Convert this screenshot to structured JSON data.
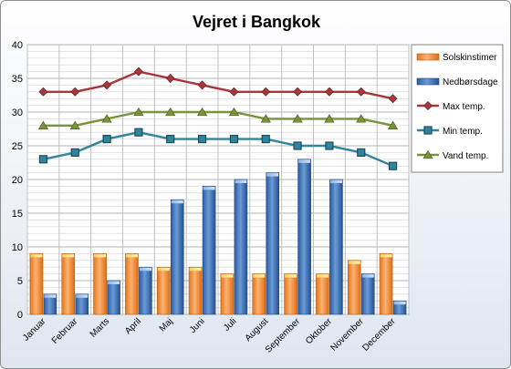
{
  "chart_data": {
    "type": "bar",
    "title": "Vejret i Bangkok",
    "categories": [
      "Januar",
      "Februar",
      "Marts",
      "April",
      "Maj",
      "Juni",
      "Juli",
      "August",
      "September",
      "Oktober",
      "November",
      "December"
    ],
    "ylim": [
      0,
      40
    ],
    "yticks": [
      0,
      5,
      10,
      15,
      20,
      25,
      30,
      35,
      40
    ],
    "grid": true,
    "legend_position": "right",
    "series": [
      {
        "name": "Solskinstimer",
        "kind": "bar",
        "color": "#f79646",
        "values": [
          9,
          9,
          9,
          9,
          7,
          7,
          6,
          6,
          6,
          6,
          8,
          9
        ]
      },
      {
        "name": "Nedbørsdage",
        "kind": "bar",
        "color": "#4f81bd",
        "values": [
          3,
          3,
          5,
          7,
          17,
          19,
          20,
          21,
          23,
          20,
          6,
          2
        ]
      },
      {
        "name": "Max temp.",
        "kind": "line",
        "marker": "diamond",
        "color": "#a5373d",
        "values": [
          33,
          33,
          34,
          36,
          35,
          34,
          33,
          33,
          33,
          33,
          33,
          32
        ]
      },
      {
        "name": "Min temp.",
        "kind": "line",
        "marker": "square",
        "color": "#31849b",
        "values": [
          23,
          24,
          26,
          27,
          26,
          26,
          26,
          26,
          25,
          25,
          24,
          22
        ]
      },
      {
        "name": "Vand temp.",
        "kind": "line",
        "marker": "triangle",
        "color": "#77933c",
        "values": [
          28,
          28,
          29,
          30,
          30,
          30,
          30,
          29,
          29,
          29,
          29,
          28
        ]
      }
    ]
  }
}
